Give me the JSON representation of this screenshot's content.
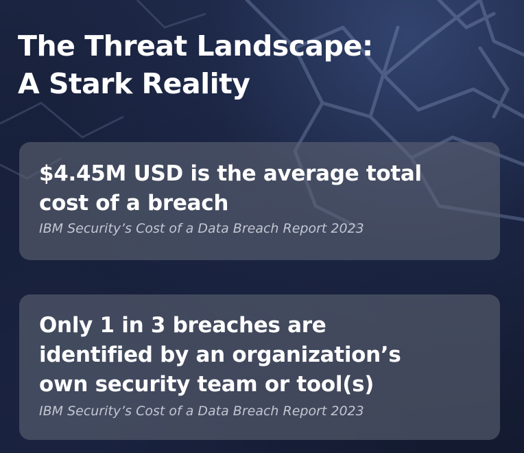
{
  "slide": {
    "title_lines": [
      "The Threat Landscape:",
      "A Stark Reality"
    ]
  },
  "cards": [
    {
      "stat_lines": [
        "$4.45M USD is the average total",
        "cost of a breach"
      ],
      "source": "IBM Security’s Cost of a Data Breach Report 2023"
    },
    {
      "stat_lines": [
        "Only 1 in 3 breaches are",
        "identified by an organization’s",
        "own security team or tool(s)"
      ],
      "source": "IBM Security’s Cost of a Data Breach Report 2023"
    }
  ],
  "colors": {
    "background": "#141b31",
    "card": "#5c6272",
    "text": "#ffffff",
    "source_text": "#c3c7d1",
    "circuit_lines": "#7f8fb8"
  }
}
